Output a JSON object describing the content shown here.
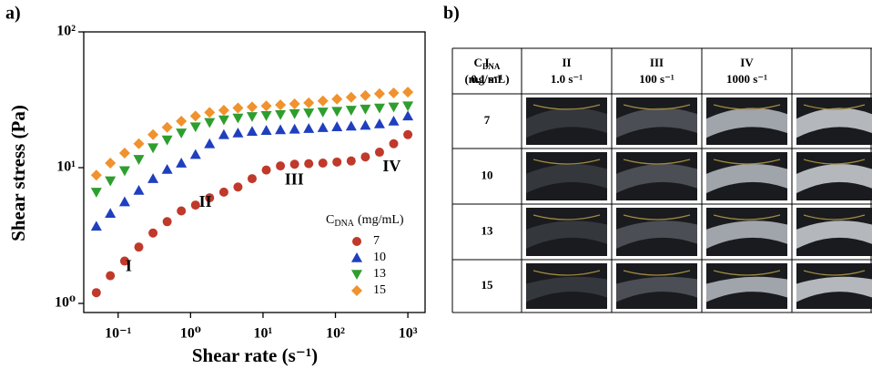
{
  "panel_labels": [
    "a)",
    "b)"
  ],
  "chart_data": {
    "type": "scatter",
    "x_label": "Shear rate (s⁻¹)",
    "y_label": "Shear stress (Pa)",
    "log_x": true,
    "log_y": true,
    "xlim": [
      0.0335,
      1728
    ],
    "ylim": [
      0.857,
      100
    ],
    "xticks": [
      {
        "value": 0.1,
        "label": "10⁻¹"
      },
      {
        "value": 1,
        "label": "10⁰"
      },
      {
        "value": 10,
        "label": "10¹"
      },
      {
        "value": 100,
        "label": "10²"
      },
      {
        "value": 1000,
        "label": "10³"
      }
    ],
    "yticks": [
      {
        "value": 1,
        "label": "10⁰"
      },
      {
        "value": 10,
        "label": "10¹"
      },
      {
        "value": 100,
        "label": "10²"
      }
    ],
    "legend_title": [
      "C",
      "DNA",
      "(mg/mL)"
    ],
    "annotations": [
      {
        "text": "I",
        "x": 0.14,
        "y": 1.85
      },
      {
        "text": "II",
        "x": 1.6,
        "y": 5.5
      },
      {
        "text": "III",
        "x": 27,
        "y": 8.0
      },
      {
        "text": "IV",
        "x": 600,
        "y": 10.0
      }
    ],
    "x": [
      0.05,
      0.078,
      0.123,
      0.193,
      0.303,
      0.475,
      0.745,
      1.17,
      1.83,
      2.88,
      4.51,
      7.07,
      11.1,
      17.4,
      27.3,
      42.8,
      67.1,
      105,
      165,
      259,
      406,
      637,
      1000
    ],
    "series": [
      {
        "name": "7",
        "color": "#c0392b",
        "marker": "circle",
        "values": [
          1.2,
          1.6,
          2.05,
          2.6,
          3.3,
          4.0,
          4.8,
          5.3,
          6.0,
          6.6,
          7.2,
          8.3,
          9.6,
          10.3,
          10.6,
          10.7,
          10.8,
          11.0,
          11.2,
          12.0,
          13.0,
          15.0,
          17.5
        ]
      },
      {
        "name": "10",
        "color": "#1f3fbf",
        "marker": "triangle-up",
        "values": [
          3.7,
          4.6,
          5.6,
          6.8,
          8.3,
          9.7,
          10.8,
          12.5,
          15,
          17.5,
          18,
          18.5,
          18.8,
          19,
          19.2,
          19.4,
          19.7,
          20,
          20.2,
          20.5,
          21,
          22,
          24
        ]
      },
      {
        "name": "13",
        "color": "#2e9e2e",
        "marker": "triangle-down",
        "values": [
          6.6,
          8.0,
          9.5,
          11.5,
          14,
          16,
          18,
          20,
          21.5,
          22.5,
          23.2,
          23.8,
          24.2,
          24.6,
          25,
          25.3,
          25.7,
          26,
          26.5,
          27,
          27.5,
          28,
          28.5
        ]
      },
      {
        "name": "15",
        "color": "#f0922e",
        "marker": "diamond",
        "values": [
          8.8,
          10.8,
          12.8,
          15,
          17.5,
          19.8,
          22,
          24,
          25.5,
          26.5,
          27.5,
          28,
          28.5,
          29,
          29.5,
          30,
          31,
          32,
          33,
          34,
          35,
          35.5,
          36
        ]
      }
    ]
  },
  "table": {
    "corner": [
      "C",
      "DNA",
      "(mg/mL)"
    ],
    "columns": [
      [
        "I",
        "0.1 s⁻¹"
      ],
      [
        "II",
        "1.0 s⁻¹"
      ],
      [
        "III",
        "100 s⁻¹"
      ],
      [
        "IV",
        "1000 s⁻¹"
      ]
    ],
    "rows": [
      "7",
      "10",
      "13",
      "15"
    ]
  }
}
